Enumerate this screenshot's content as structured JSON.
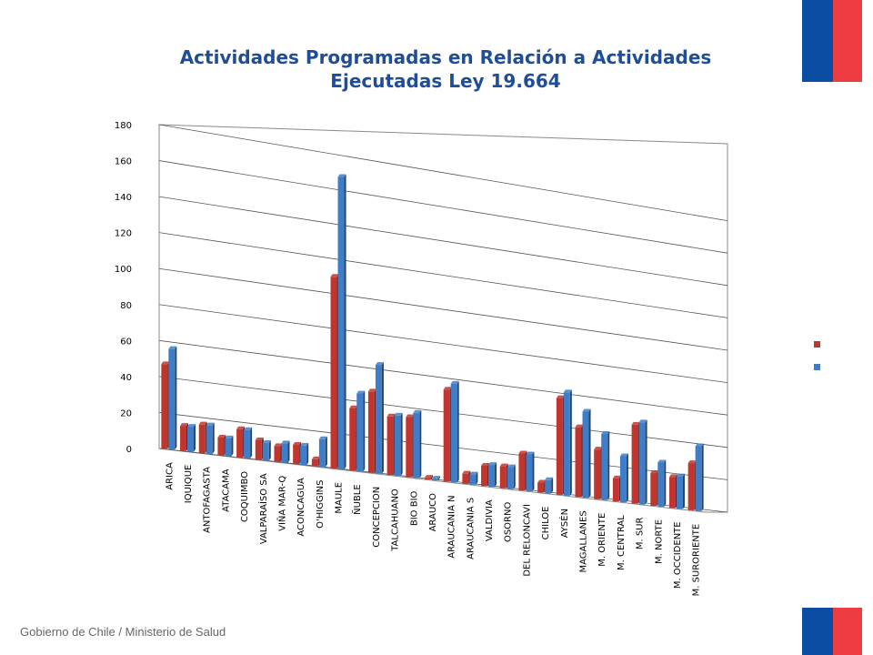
{
  "colors": {
    "title": "#1f4e97",
    "flag_blue": "#0b4da2",
    "flag_red": "#ee3d42",
    "series_programadas": "#c0362f",
    "series_ejecutadas": "#3f7ec7",
    "axis_text": "#000000"
  },
  "header": {
    "title_line1": "Actividades Programadas en Relación a Actividades",
    "title_line2": "Ejecutadas Ley 19.664"
  },
  "footer": {
    "text": "Gobierno de Chile / Ministerio de Salud"
  },
  "chart_data": {
    "type": "bar",
    "title": "Actividades Programadas en Relación a Actividades Ejecutadas Ley 19.664",
    "xlabel": "",
    "ylabel": "",
    "ylim": [
      0,
      180
    ],
    "yticks": [
      0,
      20,
      40,
      60,
      80,
      100,
      120,
      140,
      160,
      180
    ],
    "grid": true,
    "legend": "right",
    "categories": [
      "ARICA",
      "IQUIQUE",
      "ANTOFAGASTA",
      "ATACAMA",
      "COQUIMBO",
      "VALPARAÍSO SA",
      "VIÑA MAR-Q",
      "ACONCAGUA",
      "O'HIGGINS",
      "MAULE",
      "ÑUBLE",
      "CONCEPCION",
      "TALCAHUANO",
      "BIO BIO",
      "ARAUCO",
      "ARAUCANIA N",
      "ARAUCANIA S",
      "VALDIVIA",
      "OSORNO",
      "DEL RELONCAVI",
      "CHILOE",
      "AYSÉN",
      "MAGALLANES",
      "M. ORIENTE",
      "M. CENTRAL",
      "M. SUR",
      "M. NORTE",
      "M. OCCIDENTE",
      "M. SURORIENTE"
    ],
    "series": [
      {
        "values": [
          47,
          14,
          16,
          10,
          16,
          11,
          9,
          11,
          4,
          110,
          36,
          47,
          34,
          35,
          1,
          54,
          6,
          12,
          13,
          22,
          6,
          58,
          42,
          30,
          14,
          48,
          20,
          19,
          29
        ]
      },
      {
        "values": [
          56,
          14,
          16,
          10,
          16,
          10,
          11,
          11,
          16,
          168,
          45,
          63,
          35,
          38,
          1,
          58,
          6,
          13,
          13,
          22,
          8,
          62,
          52,
          40,
          28,
          50,
          27,
          20,
          40
        ]
      }
    ]
  }
}
